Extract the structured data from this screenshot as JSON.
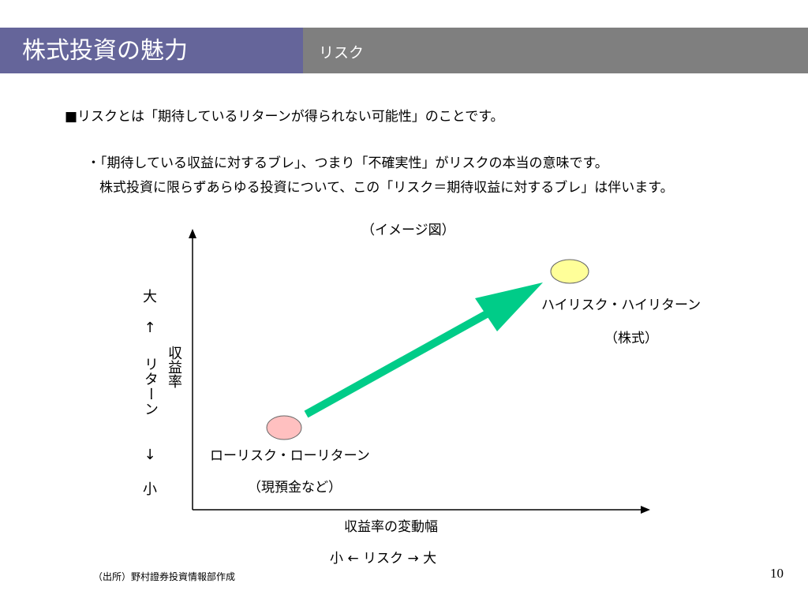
{
  "header": {
    "title": "株式投資の魅力",
    "section": "リスク",
    "colors": {
      "title_bg": "#65659a",
      "section_bg": "#7f7f7f"
    }
  },
  "body": {
    "line1": "■リスクとは「期待しているリターンが得られない可能性」のことです。",
    "line2": "・「期待している収益に対するブレ」、つまり「不確実性」がリスクの本当の意味です。",
    "line3": "株式投資に限らずあらゆる投資について、この「リスク＝期待収益に対するブレ」は伴います。"
  },
  "diagram": {
    "caption": "（イメージ図）",
    "y_axis": {
      "top": "大",
      "up_arrow": "↑",
      "middle": "リターン",
      "down_arrow": "↓",
      "bottom": "小",
      "side_label": "収益率"
    },
    "x_axis": {
      "title": "収益率の変動幅",
      "range": "小 ← リスク → 大"
    },
    "high_point": {
      "label": "ハイリスク・ハイリターン",
      "sub": "（株式）",
      "color": "#ffff99"
    },
    "low_point": {
      "label": "ローリスク・ローリターン",
      "sub": "（現預金など）",
      "color": "#ffc0c0"
    },
    "arrow_color": "#00cc88"
  },
  "footer": {
    "source": "（出所）野村證券投資情報部作成",
    "page": "10"
  }
}
